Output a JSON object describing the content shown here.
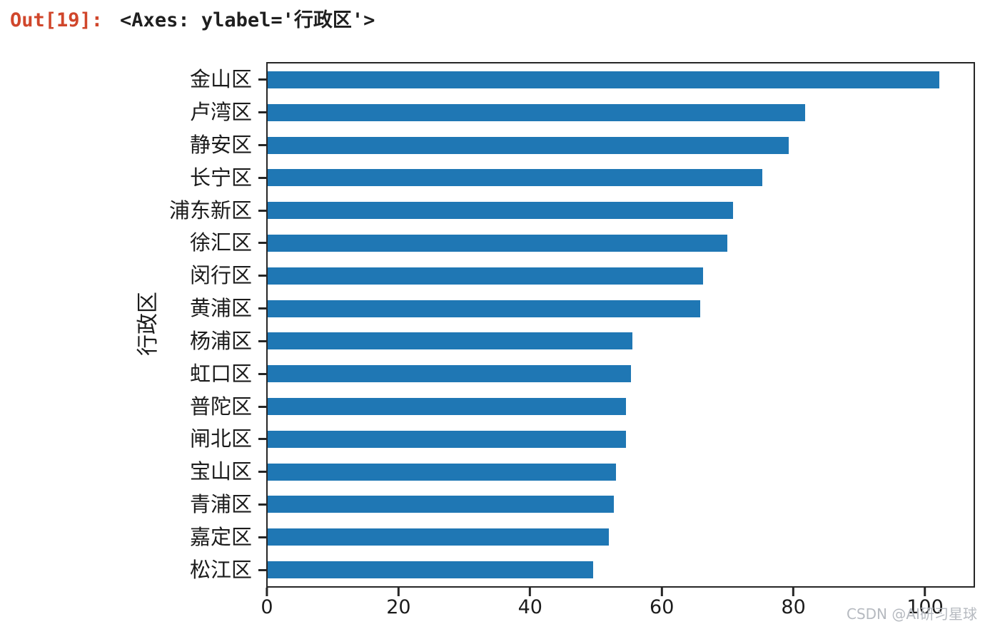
{
  "header": {
    "prompt": "Out[19]:",
    "output_repr": "<Axes: ylabel='行政区'>"
  },
  "chart_data": {
    "type": "bar",
    "orientation": "horizontal",
    "title": "",
    "xlabel": "",
    "ylabel": "行政区",
    "categories": [
      "金山区",
      "卢湾区",
      "静安区",
      "长宁区",
      "浦东新区",
      "徐汇区",
      "闵行区",
      "黄浦区",
      "杨浦区",
      "虹口区",
      "普陀区",
      "闸北区",
      "宝山区",
      "青浦区",
      "嘉定区",
      "松江区"
    ],
    "values": [
      102.5,
      82.0,
      79.5,
      75.5,
      71.0,
      70.1,
      66.4,
      66.0,
      55.6,
      55.4,
      54.7,
      54.7,
      53.1,
      52.8,
      52.1,
      49.7
    ],
    "xticks": [
      0,
      20,
      40,
      60,
      80,
      100
    ],
    "xlim": [
      0,
      107.7
    ],
    "bar_color": "#1f77b4",
    "grid": false,
    "legend": false
  },
  "watermark": "CSDN @AI研习星球",
  "colors": {
    "prompt": "#d0462b",
    "repr_text": "#1f1f1f",
    "bar": "#1f77b4",
    "axis": "#262626",
    "tick_text": "#1c1c1c",
    "watermark": "#b6bac0"
  }
}
